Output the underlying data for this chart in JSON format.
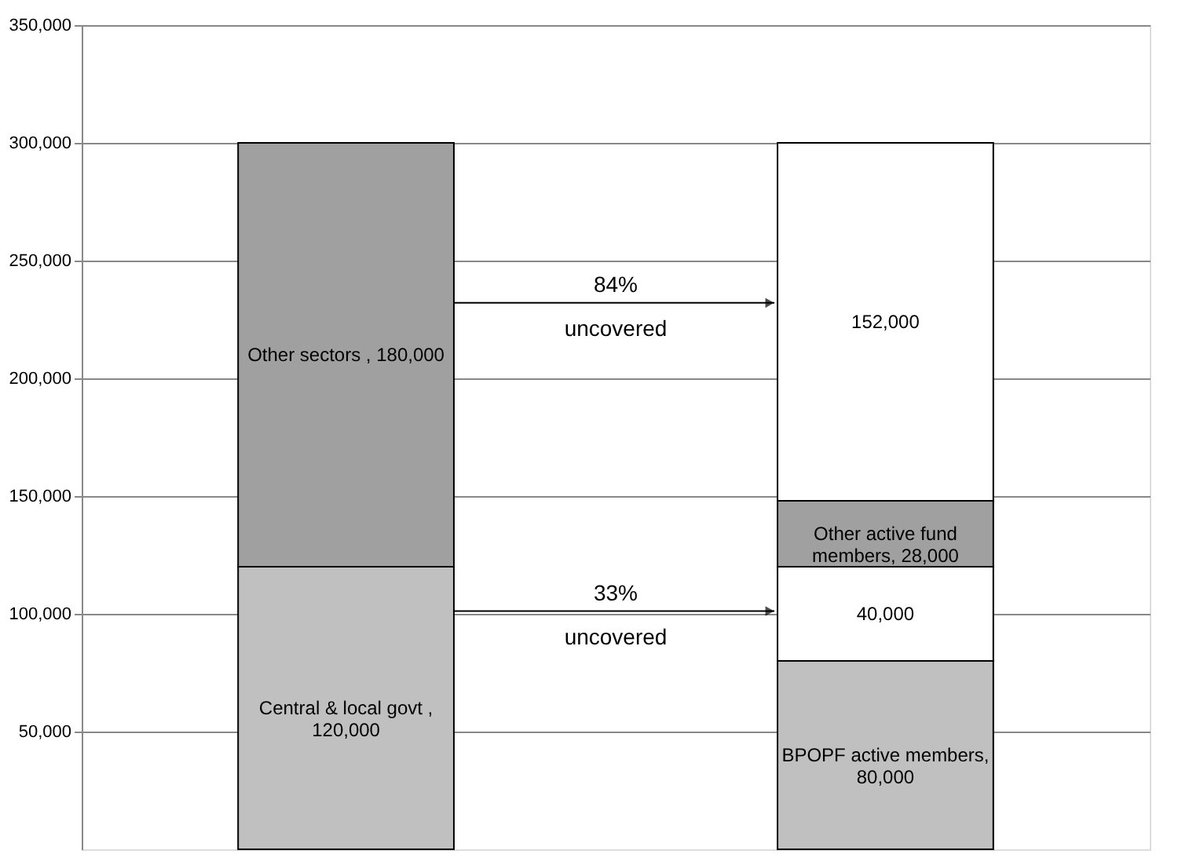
{
  "chart_data": {
    "type": "bar",
    "stacked": true,
    "categories": [
      null,
      null
    ],
    "series": [
      {
        "color": "#c0c0c0",
        "values": [
          120000,
          80000
        ],
        "value_labels": [
          "Central & local govt ,\n120,000",
          "BPOPF active members,\n80,000"
        ]
      },
      {
        "color": "#ffffff",
        "values": [
          null,
          40000
        ],
        "value_labels": [
          null,
          "40,000"
        ]
      },
      {
        "color": "#a0a0a0",
        "values": [
          180000,
          28000
        ],
        "value_labels": [
          "Other sectors , 180,000",
          "Other active fund\nmembers, 28,000"
        ]
      },
      {
        "color": "#ffffff",
        "values": [
          null,
          152000
        ],
        "value_labels": [
          null,
          "152,000"
        ]
      }
    ],
    "ylim": [
      0,
      350000
    ],
    "yticks": [
      {
        "value": 50000,
        "label": "50,000"
      },
      {
        "value": 100000,
        "label": "100,000"
      },
      {
        "value": 150000,
        "label": "150,000"
      },
      {
        "value": 200000,
        "label": "200,000"
      },
      {
        "value": 250000,
        "label": "250,000"
      },
      {
        "value": 300000,
        "label": "300,000"
      },
      {
        "value": 350000,
        "label": "350,000"
      }
    ],
    "grid": "y",
    "legend": false,
    "annotations": [
      "84%\nuncovered",
      "33%\nuncovered"
    ]
  }
}
